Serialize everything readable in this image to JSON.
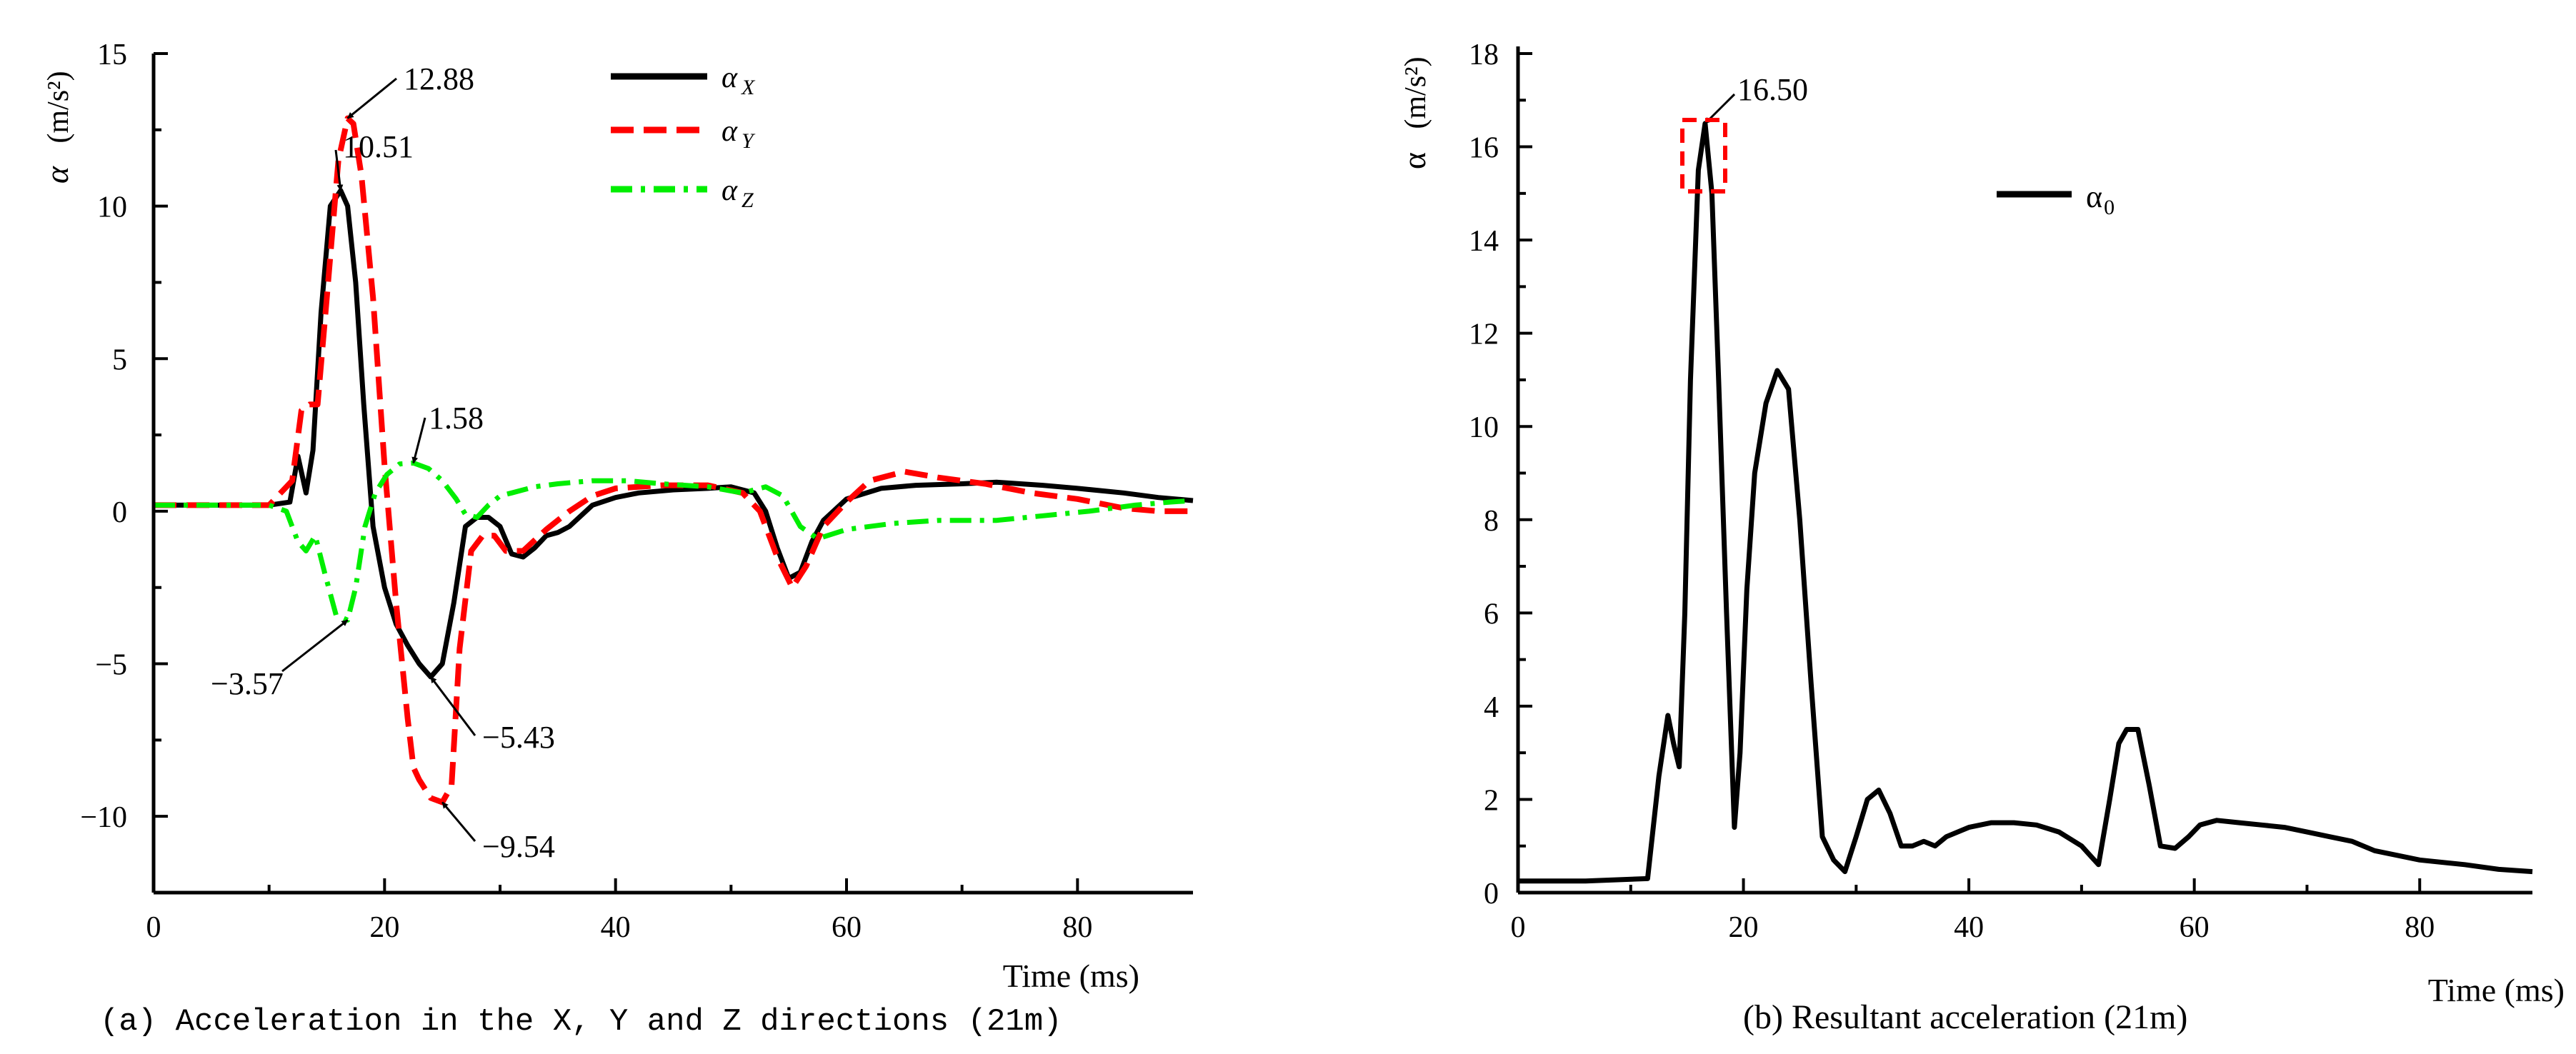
{
  "colors": {
    "axis": "#000000",
    "x": "#000000",
    "y": "#ff0000",
    "z": "#00ee00",
    "resultant": "#000000",
    "highlight": "#ff0000"
  },
  "chart_data": [
    {
      "type": "line",
      "id": "a",
      "caption": "(a) Acceleration in the X, Y and Z directions (21m)",
      "xlabel": "Time (ms)",
      "ylabel_symbol": "α",
      "ylabel_unit": "(m/s²)",
      "xlim": [
        0,
        90
      ],
      "ylim": [
        -12.5,
        15
      ],
      "xticks": [
        0,
        20,
        40,
        60,
        80
      ],
      "xtick_labels": [
        "0",
        "20",
        "40",
        "60",
        "80"
      ],
      "yticks": [
        -10,
        -5,
        0,
        5,
        10,
        15
      ],
      "ytick_labels": [
        "−10",
        "−5",
        "0",
        "5",
        "10",
        "15"
      ],
      "grid": false,
      "legend_position": "top-center",
      "series": [
        {
          "name": "α X",
          "legend_symbol": "α",
          "legend_subscript": "X",
          "style": "solid",
          "x": [
            0,
            5,
            10,
            11.8,
            12.5,
            13.2,
            13.8,
            14.5,
            15.3,
            16.2,
            16.8,
            17.5,
            18.2,
            19,
            20,
            21,
            22,
            23,
            24,
            25,
            26,
            27,
            28,
            29,
            30,
            31,
            32,
            33,
            34,
            35,
            36,
            38,
            40,
            42,
            45,
            48,
            50,
            52,
            53,
            54,
            55,
            56,
            57,
            58,
            60,
            63,
            66,
            70,
            73,
            77,
            80,
            84,
            87,
            90
          ],
          "y": [
            0.2,
            0.2,
            0.2,
            0.3,
            1.8,
            0.6,
            2.0,
            6.5,
            10.0,
            10.51,
            10.0,
            7.5,
            3.5,
            -0.5,
            -2.5,
            -3.7,
            -4.4,
            -5.0,
            -5.43,
            -5.0,
            -3.0,
            -0.5,
            -0.2,
            -0.2,
            -0.5,
            -1.4,
            -1.5,
            -1.2,
            -0.8,
            -0.7,
            -0.5,
            0.2,
            0.45,
            0.6,
            0.7,
            0.75,
            0.8,
            0.6,
            0.0,
            -1.2,
            -2.2,
            -2.0,
            -1.0,
            -0.3,
            0.4,
            0.75,
            0.85,
            0.9,
            0.95,
            0.85,
            0.75,
            0.6,
            0.45,
            0.35
          ]
        },
        {
          "name": "α Y",
          "legend_symbol": "α",
          "legend_subscript": "Y",
          "style": "dashed",
          "x": [
            0,
            5,
            10,
            12,
            12.8,
            13.5,
            14.2,
            15,
            16,
            16.8,
            17.3,
            18,
            19,
            20,
            21,
            22,
            22.5,
            23,
            24,
            25,
            25.8,
            26.5,
            27.5,
            28.5,
            29.5,
            30.5,
            32,
            34,
            36,
            38,
            40,
            44,
            48,
            51,
            52.5,
            54,
            55.3,
            56.5,
            58,
            60,
            62,
            65,
            68,
            72,
            76,
            80,
            84,
            87,
            90
          ],
          "y": [
            0.2,
            0.2,
            0.2,
            1.0,
            3.3,
            3.5,
            3.5,
            7.0,
            11.5,
            12.88,
            12.7,
            11.0,
            7.0,
            1.5,
            -3.0,
            -6.8,
            -8.4,
            -8.8,
            -9.4,
            -9.54,
            -9.0,
            -4.5,
            -1.3,
            -0.8,
            -0.8,
            -1.3,
            -1.3,
            -0.6,
            0.0,
            0.5,
            0.75,
            0.85,
            0.85,
            0.6,
            0.0,
            -1.5,
            -2.5,
            -1.8,
            -0.5,
            0.3,
            1.0,
            1.3,
            1.1,
            0.9,
            0.6,
            0.4,
            0.1,
            0.0,
            0.0
          ]
        },
        {
          "name": "α Z",
          "legend_symbol": "α",
          "legend_subscript": "Z",
          "style": "dash-dot",
          "x": [
            0,
            5,
            10,
            11.5,
            12.5,
            13.2,
            14,
            14.8,
            15.8,
            16.8,
            17.5,
            18.3,
            19.2,
            20.2,
            21.3,
            22.5,
            23.8,
            25,
            26.2,
            27,
            28,
            29,
            30,
            31,
            33,
            35,
            38,
            41,
            44,
            48,
            51,
            53,
            54.5,
            56,
            57.5,
            60,
            64,
            68,
            73,
            77,
            81,
            85,
            88,
            90
          ],
          "y": [
            0.2,
            0.2,
            0.2,
            0.0,
            -1.0,
            -1.3,
            -0.8,
            -2.0,
            -3.4,
            -3.57,
            -2.5,
            -0.5,
            0.6,
            1.2,
            1.55,
            1.58,
            1.4,
            1.0,
            0.4,
            -0.1,
            -0.2,
            0.2,
            0.5,
            0.6,
            0.8,
            0.9,
            1.0,
            1.0,
            0.9,
            0.8,
            0.6,
            0.8,
            0.5,
            -0.5,
            -0.9,
            -0.6,
            -0.4,
            -0.3,
            -0.3,
            -0.15,
            0.0,
            0.2,
            0.3,
            0.35
          ]
        }
      ],
      "annotations": [
        {
          "text": "12.88",
          "x": 16.8,
          "y": 12.88
        },
        {
          "text": "10.51",
          "x": 16.2,
          "y": 10.51
        },
        {
          "text": "1.58",
          "x": 22.5,
          "y": 1.58
        },
        {
          "text": "−3.57",
          "x": 16.8,
          "y": -3.57
        },
        {
          "text": "−5.43",
          "x": 24,
          "y": -5.43
        },
        {
          "text": "−9.54",
          "x": 25,
          "y": -9.54
        }
      ]
    },
    {
      "type": "line",
      "id": "b",
      "caption": "(b) Resultant acceleration (21m)",
      "xlabel": "Time (ms)",
      "ylabel_symbol": "α",
      "ylabel_unit": "(m/s²)",
      "xlim": [
        0,
        90
      ],
      "ylim": [
        0,
        18
      ],
      "xticks": [
        0,
        20,
        40,
        60,
        80
      ],
      "xtick_labels": [
        "0",
        "20",
        "40",
        "60",
        "80"
      ],
      "yticks": [
        0,
        2,
        4,
        6,
        8,
        10,
        12,
        14,
        16,
        18
      ],
      "ytick_labels": [
        "0",
        "2",
        "4",
        "6",
        "8",
        "10",
        "12",
        "14",
        "16",
        "18"
      ],
      "grid": false,
      "legend_position": "top-right",
      "series": [
        {
          "name": "α0",
          "legend_symbol": "α",
          "legend_subscript": "0",
          "style": "solid",
          "x": [
            0,
            6,
            11.5,
            12.5,
            13.3,
            13.8,
            14.3,
            14.8,
            15.3,
            16,
            16.6,
            17.2,
            17.8,
            18.5,
            19.2,
            19.7,
            20.3,
            21,
            22,
            23,
            24,
            25,
            26,
            27,
            28,
            29,
            30,
            31,
            32,
            33,
            34,
            35,
            36,
            37,
            38,
            40,
            42,
            44,
            46,
            48,
            50,
            51.5,
            52.5,
            53.3,
            54,
            55,
            56,
            57,
            58.3,
            59.5,
            60.5,
            62,
            64,
            66,
            68,
            70,
            72,
            74,
            76,
            78,
            80,
            84,
            87,
            90
          ],
          "y": [
            0.25,
            0.25,
            0.3,
            2.5,
            3.8,
            3.2,
            2.7,
            6.0,
            11.0,
            15.5,
            16.5,
            15.0,
            11.0,
            6.0,
            1.4,
            3.0,
            6.5,
            9.0,
            10.5,
            11.2,
            10.8,
            8.0,
            4.5,
            1.2,
            0.7,
            0.45,
            1.2,
            2.0,
            2.2,
            1.7,
            1.0,
            1.0,
            1.1,
            1.0,
            1.2,
            1.4,
            1.5,
            1.5,
            1.45,
            1.3,
            1.0,
            0.6,
            2.0,
            3.2,
            3.5,
            3.5,
            2.3,
            1.0,
            0.95,
            1.2,
            1.45,
            1.55,
            1.5,
            1.45,
            1.4,
            1.3,
            1.2,
            1.1,
            0.9,
            0.8,
            0.7,
            0.6,
            0.5,
            0.45
          ]
        }
      ],
      "annotations": [
        {
          "text": "16.50",
          "x": 16.6,
          "y": 16.5
        }
      ]
    }
  ]
}
